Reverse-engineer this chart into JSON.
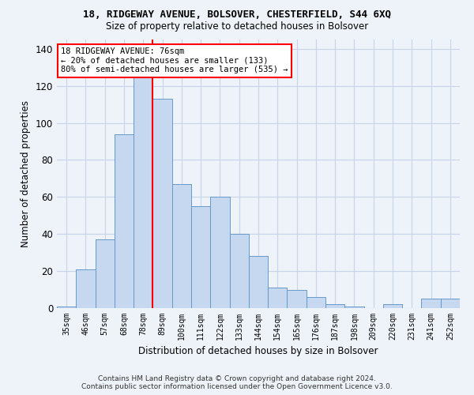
{
  "title1": "18, RIDGEWAY AVENUE, BOLSOVER, CHESTERFIELD, S44 6XQ",
  "title2": "Size of property relative to detached houses in Bolsover",
  "xlabel": "Distribution of detached houses by size in Bolsover",
  "ylabel": "Number of detached properties",
  "bar_labels": [
    "35sqm",
    "46sqm",
    "57sqm",
    "68sqm",
    "78sqm",
    "89sqm",
    "100sqm",
    "111sqm",
    "122sqm",
    "133sqm",
    "144sqm",
    "154sqm",
    "165sqm",
    "176sqm",
    "187sqm",
    "198sqm",
    "209sqm",
    "220sqm",
    "231sqm",
    "241sqm",
    "252sqm"
  ],
  "bar_values": [
    1,
    21,
    37,
    94,
    130,
    113,
    67,
    55,
    60,
    40,
    28,
    11,
    10,
    6,
    2,
    1,
    0,
    2,
    0,
    5,
    5
  ],
  "bar_color": "#c5d8f0",
  "bar_edge_color": "#6699cc",
  "bar_width": 1.0,
  "ylim": [
    0,
    145
  ],
  "yticks": [
    0,
    20,
    40,
    60,
    80,
    100,
    120,
    140
  ],
  "red_line_x": 4.5,
  "annotation_line1": "18 RIDGEWAY AVENUE: 76sqm",
  "annotation_line2": "← 20% of detached houses are smaller (133)",
  "annotation_line3": "80% of semi-detached houses are larger (535) →",
  "annotation_box_color": "white",
  "annotation_box_edge": "red",
  "footnote1": "Contains HM Land Registry data © Crown copyright and database right 2024.",
  "footnote2": "Contains public sector information licensed under the Open Government Licence v3.0.",
  "background_color": "#eef2f9",
  "grid_color": "#c8d4e8"
}
